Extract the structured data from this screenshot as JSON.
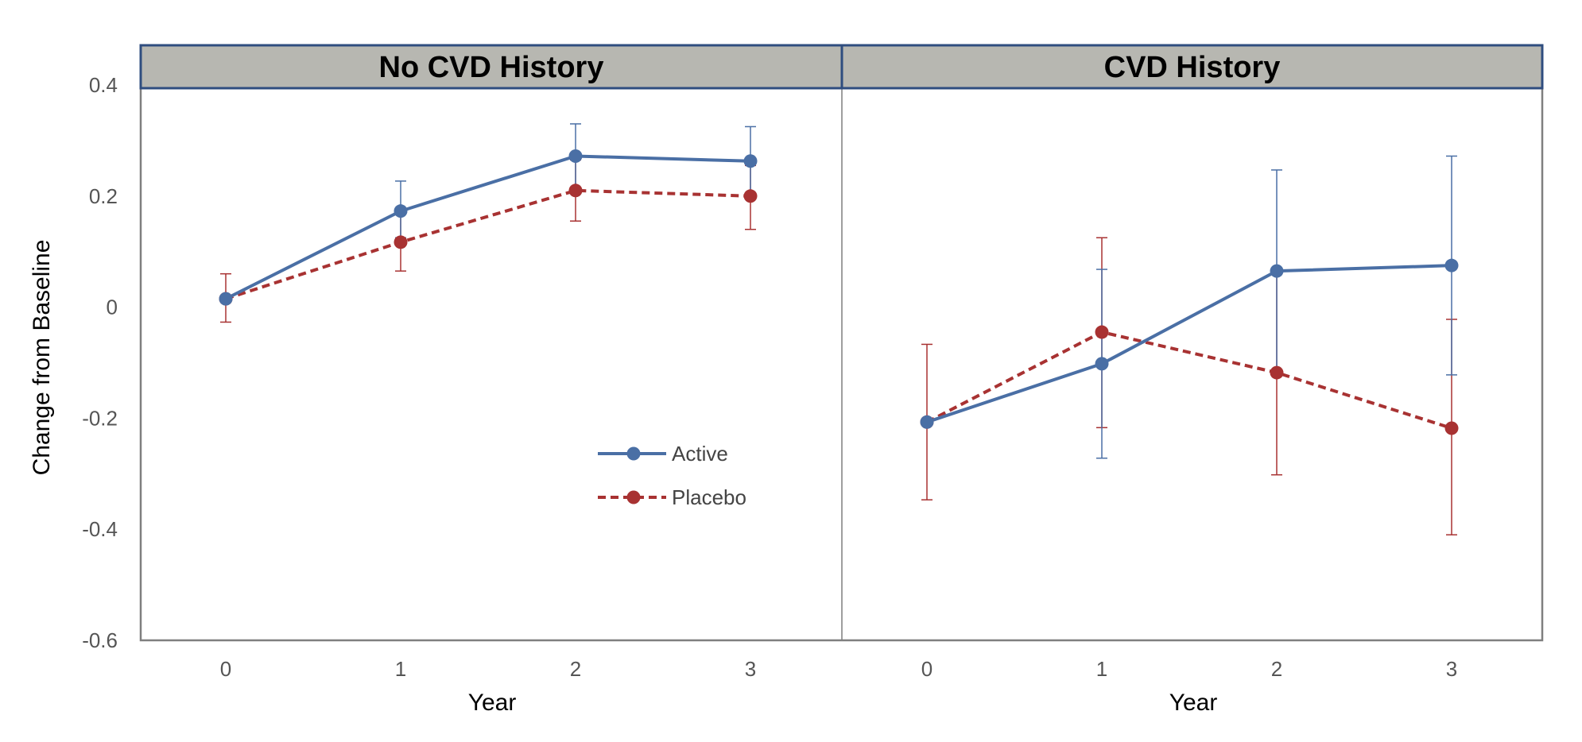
{
  "chart_data": {
    "type": "line",
    "ylabel": "Change from Baseline",
    "ylim": [
      -0.6,
      0.4
    ],
    "yticks": [
      -0.6,
      -0.4,
      -0.2,
      0,
      0.2,
      0.4
    ],
    "grid": false,
    "legend": {
      "placement": "lower-right of first panel",
      "entries": [
        "Active",
        "Placebo"
      ]
    },
    "colors": {
      "Active": "#4a6fa5",
      "Placebo": "#a83232"
    },
    "panels": [
      {
        "title": "No CVD History",
        "xlabel": "Year",
        "x": [
          0,
          1,
          2,
          3
        ],
        "series": [
          {
            "name": "Active",
            "style": "solid",
            "values": [
              0.015,
              0.173,
              0.272,
              0.263
            ],
            "err_upper": [
              0.015,
              0.227,
              0.33,
              0.325
            ],
            "err_lower": [
              0.015,
              0.125,
              0.215,
              0.2
            ]
          },
          {
            "name": "Placebo",
            "style": "dashed",
            "values": [
              0.015,
              0.117,
              0.21,
              0.2
            ],
            "err_upper": [
              0.06,
              0.17,
              0.265,
              0.255
            ],
            "err_lower": [
              -0.027,
              0.065,
              0.155,
              0.14
            ]
          }
        ]
      },
      {
        "title": "CVD History",
        "xlabel": "Year",
        "x": [
          0,
          1,
          2,
          3
        ],
        "series": [
          {
            "name": "Active",
            "style": "solid",
            "values": [
              -0.207,
              -0.102,
              0.065,
              0.075
            ],
            "err_upper": [
              -0.207,
              0.068,
              0.247,
              0.272
            ],
            "err_lower": [
              -0.207,
              -0.272,
              -0.117,
              -0.122
            ]
          },
          {
            "name": "Placebo",
            "style": "dashed",
            "values": [
              -0.207,
              -0.045,
              -0.118,
              -0.218
            ],
            "err_upper": [
              -0.067,
              0.125,
              0.065,
              -0.022
            ],
            "err_lower": [
              -0.347,
              -0.217,
              -0.302,
              -0.41
            ]
          }
        ]
      }
    ]
  }
}
